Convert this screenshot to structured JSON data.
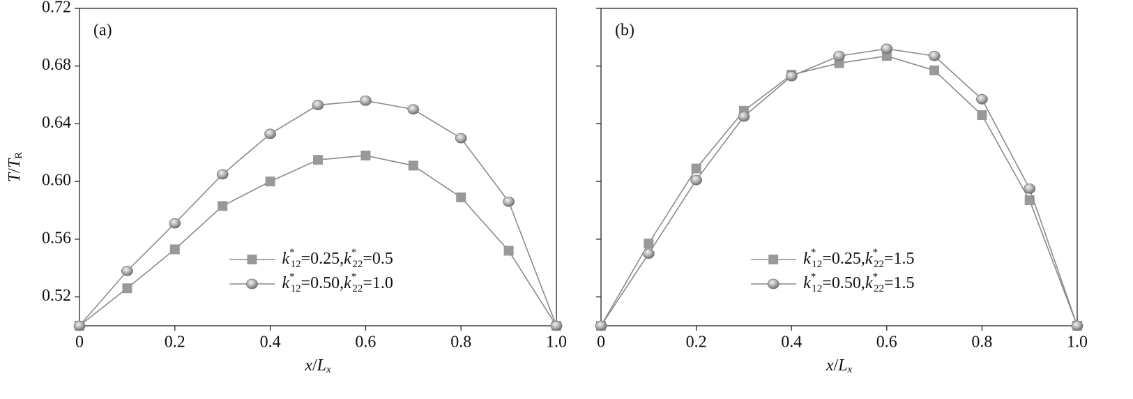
{
  "chart_data": [
    {
      "type": "line",
      "panel_label": "(a)",
      "xlabel": "x/Lx",
      "ylabel": "T/TR",
      "x": [
        0,
        0.1,
        0.2,
        0.3,
        0.4,
        0.5,
        0.6,
        0.7,
        0.8,
        0.9,
        1.0
      ],
      "series": [
        {
          "name": "k*12=0.25,k*22=0.5",
          "color": "#999999",
          "marker": "square",
          "values": [
            0.5,
            0.526,
            0.553,
            0.583,
            0.6,
            0.615,
            0.618,
            0.611,
            0.589,
            0.552,
            0.5
          ]
        },
        {
          "name": "k*12=0.50,k*22=1.0",
          "color": "#999999",
          "marker": "circle",
          "values": [
            0.5,
            0.538,
            0.571,
            0.605,
            0.633,
            0.653,
            0.656,
            0.65,
            0.63,
            0.586,
            0.5
          ]
        }
      ],
      "xlim": [
        0,
        1.0
      ],
      "xticks": [
        0,
        0.2,
        0.4,
        0.6,
        0.8,
        {
          "value": 1.0,
          "label": "1.0"
        }
      ],
      "ylim": [
        0.5,
        0.72
      ],
      "yticks": [
        0.52,
        0.56,
        {
          "value": 0.6,
          "label": "0.60"
        },
        0.64,
        0.68,
        0.72
      ],
      "legend": "lower center"
    },
    {
      "type": "line",
      "panel_label": "(b)",
      "xlabel": "x/Lx",
      "x": [
        0,
        0.1,
        0.2,
        0.3,
        0.4,
        0.5,
        0.6,
        0.7,
        0.8,
        0.9,
        1.0
      ],
      "series": [
        {
          "name": "k*12=0.25,k*22=1.5",
          "color": "#999999",
          "marker": "square",
          "values": [
            0.5,
            0.557,
            0.609,
            0.649,
            0.674,
            0.682,
            0.687,
            0.677,
            0.646,
            0.587,
            0.5
          ]
        },
        {
          "name": "k*12=0.50,k*22=1.5",
          "color": "#999999",
          "marker": "circle",
          "values": [
            0.5,
            0.55,
            0.601,
            0.645,
            0.673,
            0.687,
            0.692,
            0.687,
            0.657,
            0.595,
            0.5
          ]
        }
      ],
      "xlim": [
        0,
        1.0
      ],
      "xticks": [
        0,
        0.2,
        0.4,
        0.6,
        0.8,
        {
          "value": 1.0,
          "label": "1.0"
        }
      ],
      "ylim": [
        0.5,
        0.72
      ],
      "yticks": [
        0.52,
        0.56,
        0.6,
        0.64,
        0.68,
        0.72
      ],
      "ytick_labels": false,
      "legend": "lower center"
    }
  ]
}
